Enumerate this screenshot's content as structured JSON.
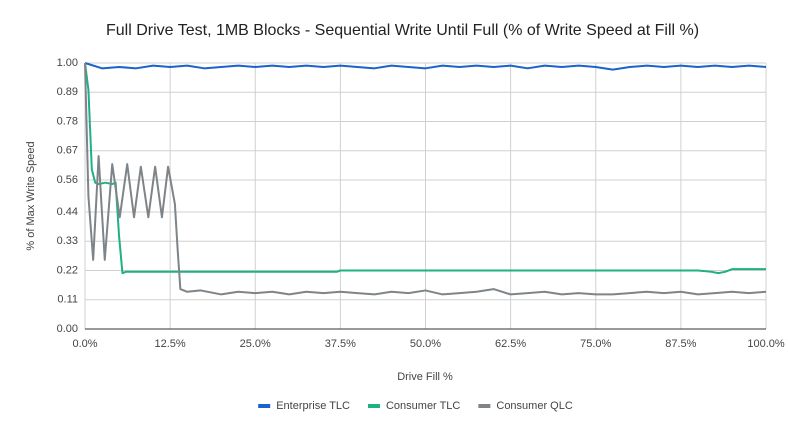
{
  "chart_data": {
    "type": "line",
    "title": "Full Drive Test, 1MB Blocks - Sequential Write Until Full (% of Write Speed at Fill %)",
    "x_label": "Drive Fill %",
    "y_label": "% of Max Write Speed",
    "xlim": [
      0,
      100
    ],
    "xticks": [
      {
        "value": 0,
        "label": "0.0%"
      },
      {
        "value": 12.5,
        "label": "12.5%"
      },
      {
        "value": 25,
        "label": "25.0%"
      },
      {
        "value": 37.5,
        "label": "37.5%"
      },
      {
        "value": 50,
        "label": "50.0%"
      },
      {
        "value": 62.5,
        "label": "62.5%"
      },
      {
        "value": 75,
        "label": "75.0%"
      },
      {
        "value": 87.5,
        "label": "87.5%"
      },
      {
        "value": 100,
        "label": "100.0%"
      }
    ],
    "ylim": [
      0,
      1
    ],
    "yticks": [
      {
        "value": 0,
        "label": "0.00"
      },
      0.11,
      0.22,
      0.33,
      0.44,
      0.56,
      0.67,
      0.78,
      0.89,
      {
        "value": 1,
        "label": "1.00"
      }
    ],
    "grid": true,
    "legend": "bottom",
    "series": [
      {
        "name": "Enterprise TLC",
        "color": "#1a62cc",
        "x": [
          0,
          2.5,
          5,
          7.5,
          10,
          12.5,
          15,
          17.5,
          20,
          22.5,
          25,
          27.5,
          30,
          32.5,
          35,
          37.5,
          40,
          42.5,
          45,
          47.5,
          50,
          52.5,
          55,
          57.5,
          60,
          62.5,
          65,
          67.5,
          70,
          72.5,
          75,
          77.5,
          80,
          82.5,
          85,
          87.5,
          90,
          92.5,
          95,
          97.5,
          100
        ],
        "values": [
          1.0,
          0.98,
          0.985,
          0.98,
          0.99,
          0.985,
          0.99,
          0.98,
          0.985,
          0.99,
          0.985,
          0.99,
          0.985,
          0.99,
          0.985,
          0.99,
          0.985,
          0.98,
          0.99,
          0.985,
          0.98,
          0.99,
          0.985,
          0.99,
          0.985,
          0.99,
          0.98,
          0.99,
          0.985,
          0.99,
          0.985,
          0.975,
          0.985,
          0.99,
          0.985,
          0.99,
          0.985,
          0.99,
          0.985,
          0.99,
          0.985
        ]
      },
      {
        "name": "Consumer TLC",
        "color": "#1fb084",
        "x": [
          0,
          0.5,
          1,
          1.5,
          2,
          3,
          4,
          4.5,
          5,
          5.5,
          6,
          10,
          20,
          30,
          37,
          37.5,
          50,
          60,
          70,
          80,
          85,
          90,
          92,
          93,
          94,
          95,
          97.5,
          100
        ],
        "values": [
          1.0,
          0.9,
          0.6,
          0.55,
          0.545,
          0.55,
          0.545,
          0.55,
          0.35,
          0.21,
          0.215,
          0.215,
          0.215,
          0.215,
          0.215,
          0.22,
          0.22,
          0.22,
          0.22,
          0.22,
          0.22,
          0.22,
          0.215,
          0.21,
          0.215,
          0.225,
          0.225,
          0.225
        ]
      },
      {
        "name": "Consumer QLC",
        "color": "#7e8488",
        "x": [
          0,
          0.5,
          1.2,
          2,
          2.9,
          4,
          5.1,
          6.2,
          7.2,
          8.2,
          9.3,
          10.3,
          11.3,
          12.2,
          13.2,
          13.6,
          14,
          15,
          17,
          20,
          22.5,
          25,
          27.5,
          30,
          32.5,
          35,
          37.5,
          40,
          42.5,
          45,
          47.5,
          50,
          52.5,
          55,
          57.5,
          60,
          62.5,
          65,
          67.5,
          70,
          72.5,
          75,
          77.5,
          80,
          82.5,
          85,
          87.5,
          90,
          92.5,
          95,
          97.5,
          100
        ],
        "values": [
          1.0,
          0.5,
          0.26,
          0.65,
          0.26,
          0.62,
          0.42,
          0.62,
          0.42,
          0.61,
          0.42,
          0.61,
          0.42,
          0.61,
          0.47,
          0.3,
          0.15,
          0.14,
          0.145,
          0.13,
          0.14,
          0.135,
          0.14,
          0.13,
          0.14,
          0.135,
          0.14,
          0.135,
          0.13,
          0.14,
          0.135,
          0.145,
          0.13,
          0.135,
          0.14,
          0.15,
          0.13,
          0.135,
          0.14,
          0.13,
          0.135,
          0.13,
          0.13,
          0.135,
          0.14,
          0.135,
          0.14,
          0.13,
          0.135,
          0.14,
          0.135,
          0.14
        ]
      }
    ]
  }
}
